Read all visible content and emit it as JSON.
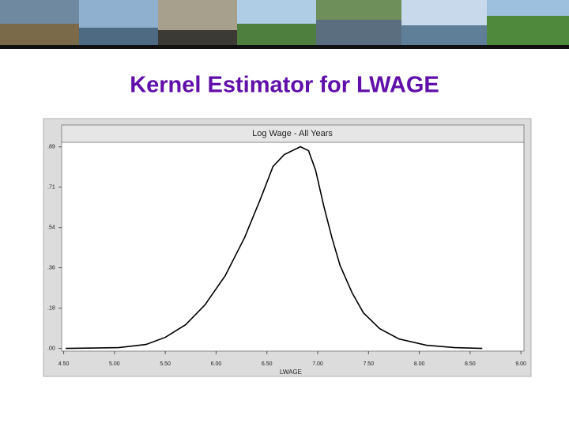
{
  "slide_title": "Kernel Estimator for LWAGE",
  "chart_data": {
    "type": "line",
    "title": "Log Wage - All Years",
    "xlabel": "LWAGE",
    "color": "#000000",
    "x": [
      4.52,
      5.04,
      5.31,
      5.5,
      5.7,
      5.89,
      6.09,
      6.28,
      6.44,
      6.56,
      6.67,
      6.83,
      6.91,
      6.98,
      7.06,
      7.14,
      7.22,
      7.34,
      7.45,
      7.61,
      7.8,
      8.07,
      8.35,
      8.62
    ],
    "values": [
      0,
      0.0035,
      0.0175,
      0.049,
      0.105,
      0.1925,
      0.322,
      0.49,
      0.665,
      0.805,
      0.8575,
      0.8925,
      0.875,
      0.7875,
      0.63,
      0.49,
      0.3675,
      0.245,
      0.1575,
      0.0875,
      0.042,
      0.014,
      0.0035,
      0
    ],
    "xlim": [
      4.48,
      9.03
    ],
    "xticks": [
      {
        "value": 4.5,
        "label": "4.50"
      },
      {
        "value": 5.0,
        "label": "5.00"
      },
      {
        "value": 5.5,
        "label": "5.50"
      },
      {
        "value": 6.0,
        "label": "6.00"
      },
      {
        "value": 6.5,
        "label": "6.50"
      },
      {
        "value": 7.0,
        "label": "7.00"
      },
      {
        "value": 7.5,
        "label": "7.50"
      },
      {
        "value": 8.0,
        "label": "8.00"
      },
      {
        "value": 8.5,
        "label": "8.50"
      },
      {
        "value": 9.0,
        "label": "9.00"
      }
    ],
    "ylim": [
      -0.012,
      0.912
    ],
    "yticks": [
      {
        "value": 0,
        "label": ".00"
      },
      {
        "value": 0.178,
        "label": ".18"
      },
      {
        "value": 0.357,
        "label": ".36"
      },
      {
        "value": 0.535,
        "label": ".54"
      },
      {
        "value": 0.714,
        "label": ".71"
      },
      {
        "value": 0.892,
        "label": ".89"
      }
    ]
  }
}
